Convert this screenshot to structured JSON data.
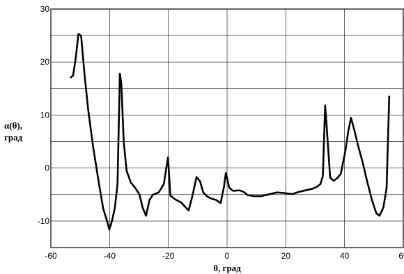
{
  "chart_data": {
    "type": "line",
    "title": "",
    "xlabel": "θ, град",
    "ylabel_lines": [
      "α(θ),",
      "град"
    ],
    "xlim": [
      -60,
      60
    ],
    "ylim": [
      -15,
      30
    ],
    "x_ticks": [
      -60,
      -40,
      -20,
      0,
      20,
      40,
      60
    ],
    "x_tick_labels": [
      "-60",
      "-40",
      "-20",
      "0",
      "20",
      "40",
      "60"
    ],
    "y_ticks": [
      -10,
      0,
      10,
      20,
      30
    ],
    "y_tick_labels": [
      "-10",
      "0",
      "10",
      "20",
      "30"
    ],
    "grid": true,
    "series": [
      {
        "color": "#000000",
        "x": [
          -53.2,
          -52.4,
          -51.5,
          -50.6,
          -49.7,
          -48.6,
          -47.3,
          -45.6,
          -43.9,
          -42.2,
          -40.6,
          -40.1,
          -39.2,
          -38.2,
          -37.3,
          -36.5,
          -36.0,
          -35.2,
          -34.2,
          -32.8,
          -31.2,
          -29.8,
          -28.8,
          -27.6,
          -26.4,
          -25.2,
          -23.3,
          -21.5,
          -20.7,
          -20.1,
          -19.3,
          -17.7,
          -15.6,
          -14.3,
          -13.1,
          -11.7,
          -10.4,
          -9.2,
          -8.1,
          -6.7,
          -5.2,
          -3.8,
          -2.2,
          -1.1,
          -0.4,
          0.7,
          2.0,
          4.2,
          5.7,
          7.0,
          9.2,
          11.5,
          13.9,
          17.0,
          19.3,
          20.7,
          22.2,
          24.4,
          26.7,
          29.1,
          30.7,
          31.8,
          32.6,
          33.4,
          33.9,
          35.1,
          36.3,
          37.5,
          38.7,
          40.2,
          41.3,
          42.2,
          43.4,
          44.7,
          46.2,
          47.6,
          49.3,
          50.8,
          51.9,
          53.2,
          54.3,
          55.2
        ],
        "y": [
          17.1,
          17.5,
          20.8,
          25.3,
          25.0,
          18.0,
          11.0,
          4.0,
          -2.0,
          -7.6,
          -10.5,
          -11.6,
          -10.0,
          -7.5,
          -3.0,
          17.8,
          16.0,
          5.0,
          -0.5,
          -2.7,
          -3.8,
          -5.0,
          -7.4,
          -9.0,
          -6.0,
          -5.0,
          -4.6,
          -3.0,
          0.0,
          2.0,
          -5.2,
          -5.9,
          -6.5,
          -7.3,
          -8.0,
          -5.0,
          -1.7,
          -2.5,
          -4.6,
          -5.4,
          -5.8,
          -6.0,
          -6.6,
          -3.6,
          -0.9,
          -3.7,
          -4.3,
          -4.2,
          -4.5,
          -5.1,
          -5.3,
          -5.3,
          -5.0,
          -4.6,
          -4.7,
          -4.8,
          -4.9,
          -4.5,
          -4.2,
          -3.9,
          -3.5,
          -3.0,
          -1.5,
          11.8,
          8.0,
          -1.8,
          -2.4,
          -1.9,
          -1.1,
          3.0,
          7.0,
          9.5,
          7.0,
          4.0,
          1.0,
          -2.3,
          -6.0,
          -8.5,
          -9.0,
          -7.5,
          -3.8,
          13.5
        ]
      }
    ]
  }
}
